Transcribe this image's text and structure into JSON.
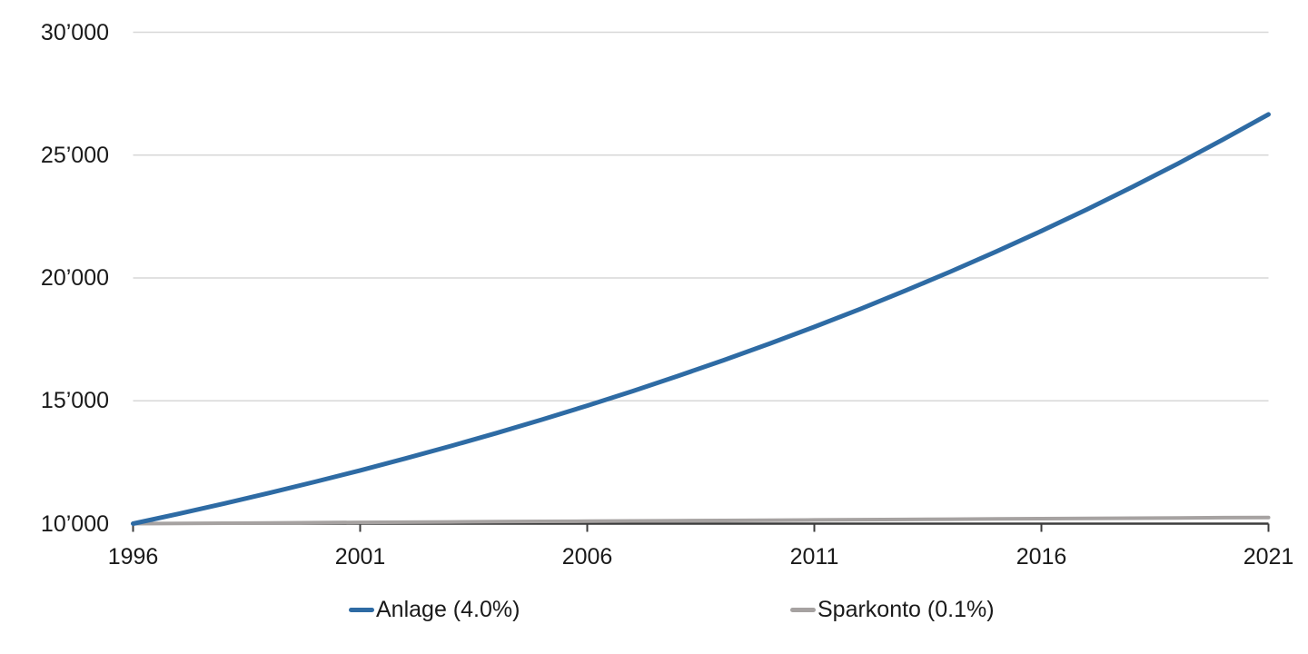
{
  "colors": {
    "background": "#ffffff",
    "grid": "#d7d7d7",
    "axis": "#3c3c3c",
    "text": "#1a1a1a",
    "anlage_blue": "#2e6ba4",
    "sparkonto_gray": "#a6a2a1"
  },
  "legend": {
    "items": [
      {
        "label": "Anlage (4.0%)",
        "color": "#2e6ba4"
      },
      {
        "label": "Sparkonto (0.1%)",
        "color": "#a6a2a1"
      }
    ]
  },
  "chart_data": {
    "type": "line",
    "title": "",
    "xlabel": "",
    "ylabel": "",
    "xlim": [
      1996,
      2021
    ],
    "ylim": [
      10000,
      30000
    ],
    "grid": "horizontal",
    "legend_position": "bottom",
    "x": [
      1996,
      1997,
      1998,
      1999,
      2000,
      2001,
      2002,
      2003,
      2004,
      2005,
      2006,
      2007,
      2008,
      2009,
      2010,
      2011,
      2012,
      2013,
      2014,
      2015,
      2016,
      2017,
      2018,
      2019,
      2020,
      2021
    ],
    "x_ticks": [
      1996,
      2001,
      2006,
      2011,
      2016,
      2021
    ],
    "x_tick_labels": [
      "1996",
      "2001",
      "2006",
      "2011",
      "2016",
      "2021"
    ],
    "y_ticks": [
      30000,
      25000,
      20000,
      15000,
      10000
    ],
    "y_tick_labels": [
      "30’000",
      "25’000",
      "20’000",
      "15’000",
      "10’000"
    ],
    "series": [
      {
        "name": "Anlage (4.0%)",
        "color": "#2e6ba4",
        "values": [
          10000,
          10400,
          10816,
          11249,
          11699,
          12167,
          12653,
          13159,
          13686,
          14233,
          14802,
          15395,
          16010,
          16651,
          17317,
          18009,
          18730,
          19479,
          20258,
          21068,
          21911,
          22788,
          23699,
          24647,
          25633,
          26658
        ]
      },
      {
        "name": "Sparkonto (0.1%)",
        "color": "#a6a2a1",
        "values": [
          10000,
          10010,
          10020,
          10030,
          10040,
          10050,
          10060,
          10070,
          10080,
          10091,
          10101,
          10111,
          10121,
          10131,
          10141,
          10151,
          10161,
          10171,
          10182,
          10192,
          10202,
          10212,
          10222,
          10232,
          10243,
          10253
        ]
      }
    ]
  }
}
